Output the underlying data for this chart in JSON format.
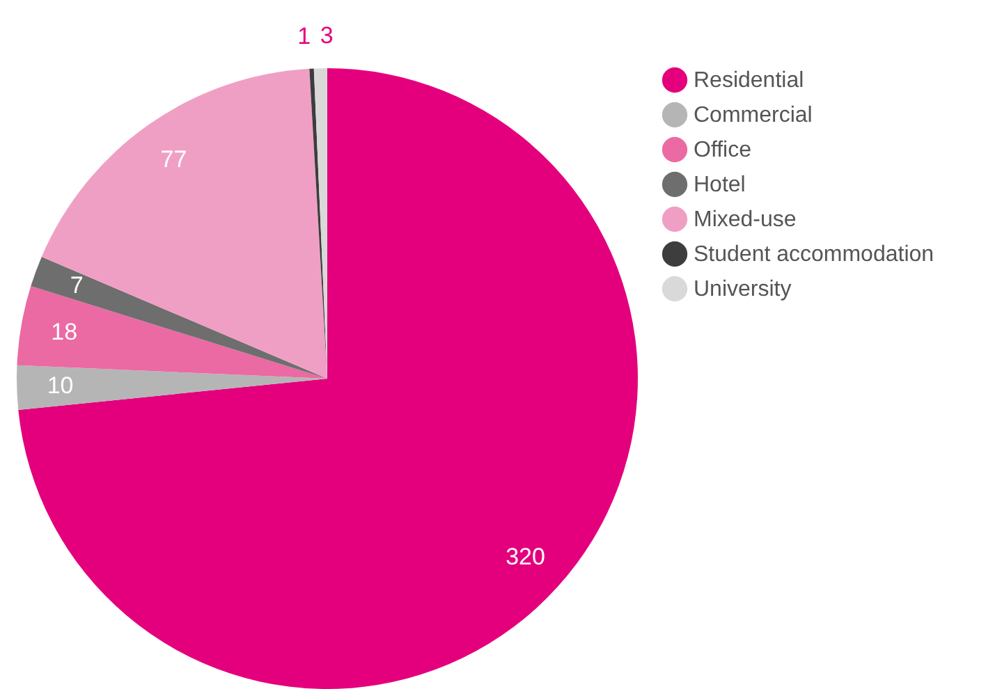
{
  "chart_data": {
    "type": "pie",
    "categories": [
      "Residential",
      "Commercial",
      "Office",
      "Hotel",
      "Mixed-use",
      "Student accommodation",
      "University"
    ],
    "values": [
      320,
      10,
      18,
      7,
      77,
      1,
      3
    ],
    "colors": [
      "#e4007c",
      "#b5b5b5",
      "#eb6aa3",
      "#6e6e6e",
      "#f09fc4",
      "#3d3d3d",
      "#d9d9d9"
    ],
    "data_labels": true,
    "legend": "right"
  }
}
